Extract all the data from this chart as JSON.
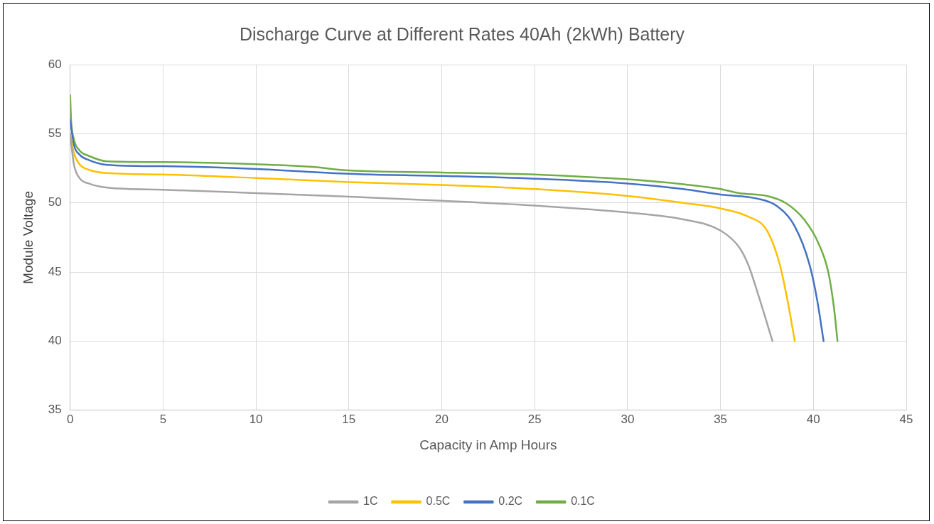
{
  "chart_data": {
    "type": "line",
    "title": "Discharge Curve at Different Rates 40Ah (2kWh) Battery",
    "xlabel": "Capacity in Amp Hours",
    "ylabel": "Module Voltage",
    "xlim": [
      0,
      45
    ],
    "xticks": [
      0,
      5,
      10,
      15,
      20,
      25,
      30,
      35,
      40,
      45
    ],
    "ylim": [
      35,
      60
    ],
    "yticks": [
      35,
      40,
      45,
      50,
      55,
      60
    ],
    "grid": true,
    "legend": "bottom",
    "marker": "none",
    "line_style": "solid",
    "series": [
      {
        "name": "1C",
        "color": "#a5a5a5",
        "x": [
          0,
          0.2,
          0.5,
          1,
          2,
          5,
          10,
          15,
          20,
          25,
          30,
          33,
          35,
          36,
          36.5,
          37,
          37.8
        ],
        "values": [
          55,
          52.8,
          51.8,
          51.4,
          51.1,
          50.95,
          50.7,
          50.45,
          50.15,
          49.8,
          49.3,
          48.8,
          48,
          46.8,
          45.5,
          43.5,
          40
        ]
      },
      {
        "name": "0.5C",
        "color": "#ffc000",
        "x": [
          0,
          0.2,
          0.5,
          1,
          2,
          5,
          10,
          15,
          20,
          25,
          30,
          33,
          35,
          36.5,
          37.5,
          38.2,
          38.6,
          39
        ],
        "values": [
          55,
          53.6,
          52.8,
          52.4,
          52.15,
          52.05,
          51.8,
          51.5,
          51.3,
          51,
          50.5,
          50,
          49.6,
          49,
          48,
          45.5,
          43,
          40
        ]
      },
      {
        "name": "0.2C",
        "color": "#4472c4",
        "x": [
          0,
          0.2,
          0.5,
          1,
          2,
          5,
          10,
          15,
          20,
          25,
          30,
          33,
          35,
          37,
          38,
          39,
          39.8,
          40.2,
          40.55
        ],
        "values": [
          56,
          54.2,
          53.5,
          53.1,
          52.75,
          52.65,
          52.45,
          52.1,
          51.95,
          51.75,
          51.4,
          51,
          50.6,
          50.3,
          49.8,
          48.3,
          45.5,
          43,
          40
        ]
      },
      {
        "name": "0.1C",
        "color": "#70ad47",
        "x": [
          0,
          0.05,
          0.2,
          0.5,
          1,
          2,
          5,
          10,
          13,
          15,
          20,
          25,
          30,
          33,
          35,
          36,
          37.5,
          38.5,
          39.5,
          40.3,
          40.8,
          41.1,
          41.3
        ],
        "values": [
          57.8,
          56,
          54.6,
          53.8,
          53.4,
          53,
          52.95,
          52.8,
          52.6,
          52.35,
          52.2,
          52.05,
          51.7,
          51.35,
          51,
          50.7,
          50.5,
          50,
          48.8,
          47,
          45,
          42.5,
          40
        ]
      }
    ]
  }
}
